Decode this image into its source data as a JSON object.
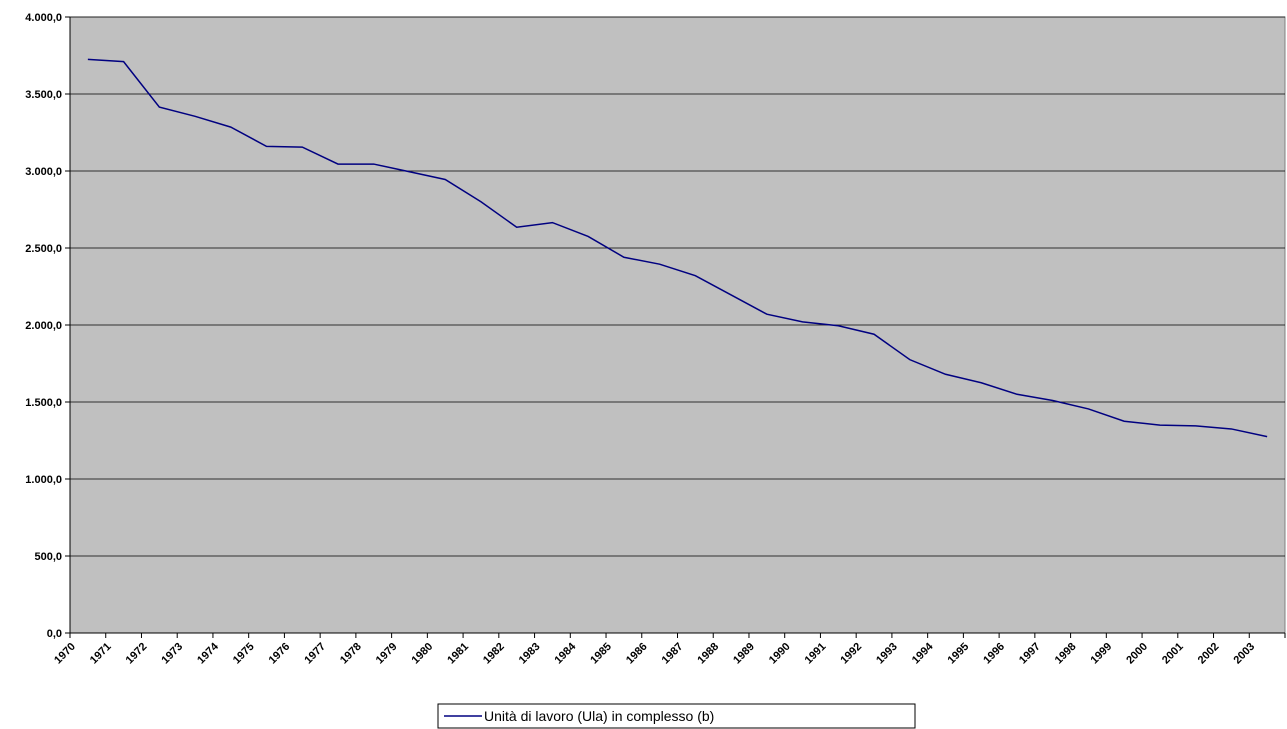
{
  "chart_data": {
    "type": "line",
    "categories": [
      "1970",
      "1971",
      "1972",
      "1973",
      "1974",
      "1975",
      "1976",
      "1977",
      "1978",
      "1979",
      "1980",
      "1981",
      "1982",
      "1983",
      "1984",
      "1985",
      "1986",
      "1987",
      "1988",
      "1989",
      "1990",
      "1991",
      "1992",
      "1993",
      "1994",
      "1995",
      "1996",
      "1997",
      "1998",
      "1999",
      "2000",
      "2001",
      "2002",
      "2003"
    ],
    "series": [
      {
        "name": "Unità di lavoro (Ula) in complesso (b)",
        "color": "#000080",
        "values": [
          3725,
          3710,
          3415,
          3355,
          3285,
          3160,
          3155,
          3045,
          3045,
          2995,
          2945,
          2800,
          2635,
          2665,
          2575,
          2440,
          2395,
          2320,
          2195,
          2070,
          2020,
          1995,
          1940,
          1775,
          1680,
          1625,
          1550,
          1510,
          1455,
          1375,
          1350,
          1345,
          1325,
          1275
        ]
      }
    ],
    "ylim": [
      0,
      4000
    ],
    "yticks": [
      {
        "value": 0,
        "label": "0,0"
      },
      {
        "value": 500,
        "label": "500,0"
      },
      {
        "value": 1000,
        "label": "1.000,0"
      },
      {
        "value": 1500,
        "label": "1.500,0"
      },
      {
        "value": 2000,
        "label": "2.000,0"
      },
      {
        "value": 2500,
        "label": "2.500,0"
      },
      {
        "value": 3000,
        "label": "3.000,0"
      },
      {
        "value": 3500,
        "label": "3.500,0"
      },
      {
        "value": 4000,
        "label": "4.000,0"
      }
    ],
    "grid": true,
    "plot_background": "#c0c0c0",
    "legend": "bottom"
  }
}
